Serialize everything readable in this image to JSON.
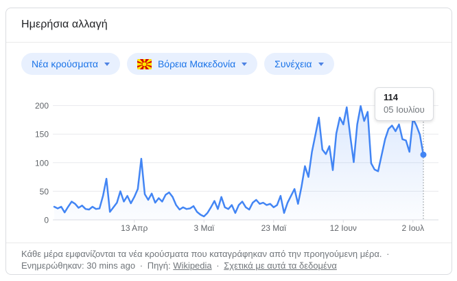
{
  "card": {
    "title": "Ημερήσια αλλαγή"
  },
  "filters": [
    {
      "label": "Νέα κρούσματα"
    },
    {
      "label": "Βόρεια Μακεδονία",
      "flag": "north-macedonia-flag"
    },
    {
      "label": "Συνέχεια"
    }
  ],
  "tooltip": {
    "value": "114",
    "date": "05 Ιουλίου"
  },
  "chart_data": {
    "type": "area",
    "title": "Ημερήσια αλλαγή",
    "series_name": "Νέα κρούσματα",
    "region": "Βόρεια Μακεδονία",
    "x_tick_labels": [
      "13 Απρ",
      "3 Μαϊ",
      "23 Μαϊ",
      "12 Ιουν",
      "2 Ιουλ"
    ],
    "x_tick_day_indices": [
      23,
      43,
      63,
      83,
      103
    ],
    "y_ticks": [
      0,
      50,
      100,
      150,
      200
    ],
    "ylim": [
      0,
      210
    ],
    "grid": true,
    "line_color": "#4285f4",
    "values": [
      23,
      20,
      23,
      13,
      23,
      32,
      28,
      21,
      25,
      19,
      18,
      23,
      19,
      20,
      42,
      72,
      14,
      22,
      30,
      50,
      32,
      42,
      29,
      40,
      54,
      107,
      45,
      35,
      46,
      30,
      38,
      32,
      44,
      48,
      40,
      26,
      18,
      22,
      19,
      20,
      24,
      14,
      9,
      6,
      12,
      22,
      33,
      19,
      40,
      22,
      19,
      26,
      12,
      26,
      32,
      22,
      18,
      30,
      35,
      28,
      30,
      26,
      28,
      22,
      26,
      42,
      12,
      30,
      42,
      54,
      28,
      58,
      94,
      75,
      119,
      149,
      179,
      123,
      115,
      129,
      87,
      151,
      179,
      167,
      197,
      147,
      101,
      167,
      199,
      173,
      189,
      99,
      88,
      85,
      113,
      141,
      159,
      165,
      155,
      167,
      141,
      139,
      119,
      177,
      165,
      149,
      114
    ],
    "highlighted_point": {
      "day_index": 106,
      "value": 114,
      "label": "05 Ιουλίου"
    }
  },
  "footer": {
    "description": "Κάθε μέρα εμφανίζονται τα νέα κρούσματα που καταγράφηκαν από την προηγούμενη μέρα.",
    "sep": "·",
    "updated": "Ενημερώθηκαν: 30 mins ago",
    "source_label": "Πηγή:",
    "source_link": "Wikipedia",
    "about_link": "Σχετικά με αυτά τα δεδομένα"
  },
  "colors": {
    "accent_blue": "#4285f4",
    "chip_bg": "#e8f0fe",
    "chip_text": "#1a73e8",
    "axis_text": "#5f6368",
    "grid_line": "#e8eaed",
    "footer_text": "#70757a"
  }
}
